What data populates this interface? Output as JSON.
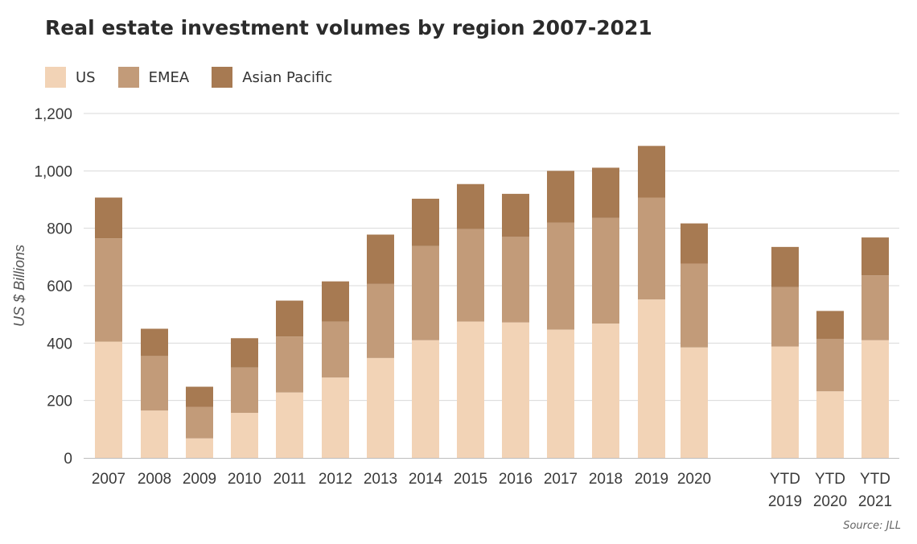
{
  "title": "Real estate investment volumes by region 2007-2021",
  "source": "Source: JLL",
  "legend": [
    {
      "label": "US",
      "color": "#f2d3b6"
    },
    {
      "label": "EMEA",
      "color": "#c29b79"
    },
    {
      "label": "Asian Pacific",
      "color": "#a77a52"
    }
  ],
  "chart_data": {
    "type": "bar",
    "stacked": true,
    "title": "Real estate investment volumes by region 2007-2021",
    "ylabel": "US $ Billions",
    "xlabel": "",
    "ylim": [
      0,
      1200
    ],
    "yticks": [
      "0",
      "200",
      "400",
      "600",
      "800",
      "1,000",
      "1,200"
    ],
    "grid": true,
    "legend_position": "top-left",
    "categories": [
      [
        "2007"
      ],
      [
        "2008"
      ],
      [
        "2009"
      ],
      [
        "2010"
      ],
      [
        "2011"
      ],
      [
        "2012"
      ],
      [
        "2013"
      ],
      [
        "2014"
      ],
      [
        "2015"
      ],
      [
        "2016"
      ],
      [
        "2017"
      ],
      [
        "2018"
      ],
      [
        "2019"
      ],
      [
        "2020"
      ],
      [
        "YTD",
        "2019"
      ],
      [
        "YTD",
        "2020"
      ],
      [
        "YTD",
        "2021"
      ]
    ],
    "series": [
      {
        "name": "US",
        "color": "#f2d3b6",
        "values": [
          405,
          165,
          68,
          157,
          228,
          280,
          348,
          410,
          475,
          472,
          447,
          468,
          552,
          385,
          388,
          232,
          410
        ]
      },
      {
        "name": "EMEA",
        "color": "#c29b79",
        "values": [
          360,
          190,
          110,
          158,
          195,
          195,
          258,
          328,
          322,
          298,
          373,
          368,
          355,
          292,
          207,
          182,
          226
        ]
      },
      {
        "name": "Asian Pacific",
        "color": "#a77a52",
        "values": [
          142,
          95,
          70,
          102,
          125,
          140,
          172,
          165,
          157,
          150,
          180,
          175,
          180,
          140,
          140,
          98,
          132
        ]
      }
    ]
  }
}
